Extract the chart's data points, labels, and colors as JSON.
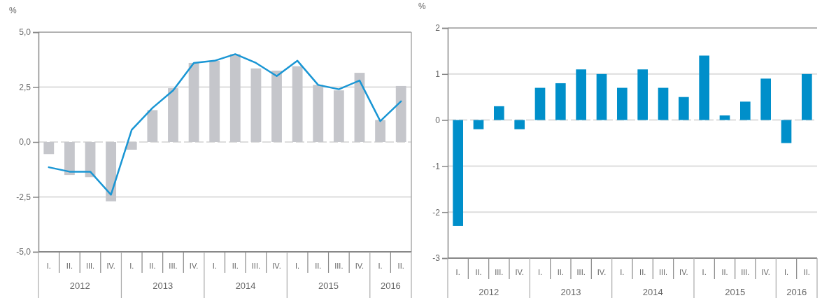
{
  "chart_data": [
    {
      "type": "bar",
      "ylabel": "%",
      "categories": [
        "I.",
        "II.",
        "III.",
        "IV.",
        "I.",
        "II.",
        "III.",
        "IV.",
        "I.",
        "II.",
        "III.",
        "IV.",
        "I.",
        "II.",
        "III.",
        "IV.",
        "I.",
        "II."
      ],
      "series": [
        {
          "color": "#c5c6cb",
          "values": [
            -0.55,
            -1.5,
            -1.6,
            -2.7,
            -0.35,
            1.45,
            2.45,
            3.6,
            3.7,
            4.0,
            3.35,
            3.25,
            3.45,
            2.6,
            2.35,
            3.15,
            1.0,
            2.55
          ]
        },
        {
          "type": "line",
          "color": "#1a96d4",
          "values": [
            -1.15,
            -1.35,
            -1.35,
            -2.4,
            0.55,
            1.55,
            2.35,
            3.6,
            3.7,
            4.0,
            3.6,
            3.0,
            3.7,
            2.6,
            2.4,
            2.8,
            0.95,
            1.85
          ]
        }
      ],
      "ylim": [
        -5,
        5
      ],
      "yticks": [
        {
          "value": -5,
          "label": "-5,0"
        },
        {
          "value": -2.5,
          "label": "-2,5"
        },
        {
          "value": 0,
          "label": "0,0"
        },
        {
          "value": 2.5,
          "label": "2,5"
        },
        {
          "value": 5,
          "label": "5,0"
        }
      ],
      "grid": true,
      "marker": "none",
      "ref_lines": [
        {
          "axis": "y",
          "value": 0,
          "line_style": "dashed",
          "color": "#dddddd"
        }
      ],
      "annotations": [
        "2012",
        "2013",
        "2014",
        "2015",
        "2016"
      ]
    },
    {
      "type": "bar",
      "ylabel": "%",
      "categories": [
        "I.",
        "II.",
        "III.",
        "IV.",
        "I.",
        "II.",
        "III.",
        "IV.",
        "I.",
        "II.",
        "III.",
        "IV.",
        "I.",
        "II.",
        "III.",
        "IV.",
        "I.",
        "II."
      ],
      "series": [
        {
          "color": "#008fca",
          "values": [
            -2.3,
            -0.2,
            0.3,
            -0.2,
            0.7,
            0.8,
            1.1,
            1.0,
            0.7,
            1.1,
            0.7,
            0.5,
            1.4,
            0.1,
            0.4,
            0.9,
            -0.5,
            1.0
          ]
        }
      ],
      "ylim": [
        -3,
        2
      ],
      "yticks": [
        -3,
        -2,
        -1,
        0,
        1,
        2
      ],
      "grid": true,
      "ref_lines": [
        {
          "axis": "y",
          "value": 0,
          "line_style": "dashed",
          "color": "#dddddd"
        }
      ],
      "annotations": [
        "2012",
        "2013",
        "2014",
        "2015",
        "2016"
      ]
    }
  ]
}
